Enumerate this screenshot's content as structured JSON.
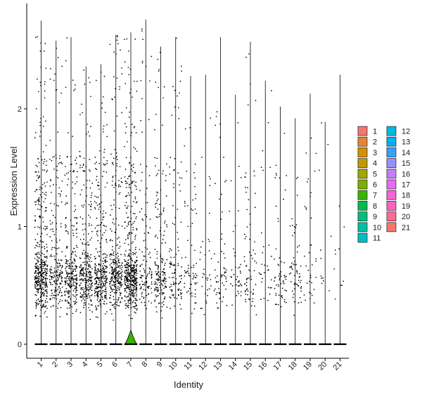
{
  "chart_data": {
    "type": "violin",
    "title": "",
    "xlabel": "Identity",
    "ylabel": "Expression Level",
    "ylim": [
      -0.12,
      2.92
    ],
    "yticks": [
      0,
      1,
      2
    ],
    "categories": [
      "1",
      "2",
      "3",
      "4",
      "5",
      "6",
      "7",
      "8",
      "9",
      "10",
      "11",
      "12",
      "13",
      "14",
      "15",
      "16",
      "17",
      "18",
      "19",
      "20",
      "21"
    ],
    "colors": [
      "#F8766D",
      "#EA8331",
      "#D89000",
      "#C09B00",
      "#A3A500",
      "#7CAE00",
      "#39B600",
      "#00BB4E",
      "#00BF7D",
      "#00C1A3",
      "#00BFC4",
      "#00BAE0",
      "#00B0F6",
      "#35A2FF",
      "#9590FF",
      "#C77CFF",
      "#E76BF3",
      "#FA62DB",
      "#FF62BC",
      "#FF6C91",
      "#F8766D"
    ],
    "max_expression": [
      2.75,
      2.58,
      2.61,
      2.36,
      2.38,
      2.63,
      2.65,
      2.76,
      2.53,
      2.61,
      2.28,
      2.29,
      2.61,
      2.12,
      2.57,
      2.24,
      2.02,
      1.92,
      2.13,
      1.89,
      2.29
    ],
    "nonzero_points": [
      430,
      210,
      260,
      280,
      320,
      300,
      480,
      120,
      180,
      110,
      70,
      35,
      60,
      40,
      70,
      30,
      60,
      60,
      35,
      12,
      10
    ],
    "legend": {
      "position": "right",
      "columns": [
        [
          "1",
          "2",
          "3",
          "4",
          "5",
          "6",
          "7",
          "8",
          "9",
          "10",
          "11"
        ],
        [
          "12",
          "13",
          "14",
          "15",
          "16",
          "17",
          "18",
          "19",
          "20",
          "21"
        ]
      ]
    }
  }
}
